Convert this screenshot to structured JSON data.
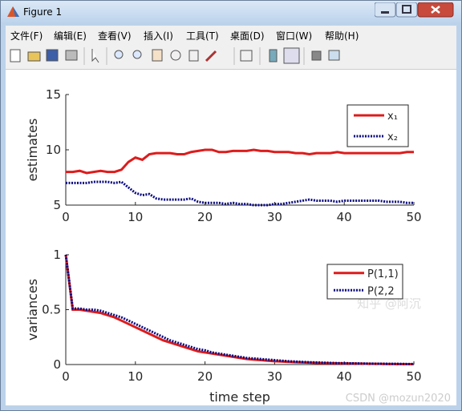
{
  "window": {
    "title": "Figure 1"
  },
  "menu": [
    "文件(F)",
    "编辑(E)",
    "查看(V)",
    "插入(I)",
    "工具(T)",
    "桌面(D)",
    "窗口(W)",
    "帮助(H)"
  ],
  "watermark": {
    "zhihu": "知乎 @阿沉",
    "csdn": "CSDN @mozun2020"
  },
  "chart_data": [
    {
      "type": "line",
      "ylabel": "estimates",
      "legend": "upper right",
      "x": [
        0,
        1,
        2,
        3,
        4,
        5,
        6,
        7,
        8,
        9,
        10,
        11,
        12,
        13,
        14,
        15,
        16,
        17,
        18,
        19,
        20,
        21,
        22,
        23,
        24,
        25,
        26,
        27,
        28,
        29,
        30,
        31,
        32,
        33,
        34,
        35,
        36,
        37,
        38,
        39,
        40,
        41,
        42,
        43,
        44,
        45,
        46,
        47,
        48,
        49,
        50
      ],
      "xlim": [
        0,
        50
      ],
      "xticks": [
        0,
        10,
        20,
        30,
        40,
        50
      ],
      "ylim": [
        5,
        15
      ],
      "yticks": [
        5,
        10,
        15
      ],
      "series": [
        {
          "name": "x₁",
          "color": "#dd1c1c",
          "style": "solid",
          "values": [
            8,
            8,
            8.1,
            7.9,
            8,
            8.1,
            8,
            8,
            8.2,
            8.9,
            9.3,
            9.1,
            9.6,
            9.7,
            9.7,
            9.7,
            9.6,
            9.6,
            9.8,
            9.9,
            10,
            10,
            9.8,
            9.8,
            9.9,
            9.9,
            9.9,
            10,
            9.9,
            9.9,
            9.8,
            9.8,
            9.8,
            9.7,
            9.7,
            9.6,
            9.7,
            9.7,
            9.7,
            9.8,
            9.7,
            9.7,
            9.7,
            9.7,
            9.7,
            9.7,
            9.7,
            9.7,
            9.7,
            9.8,
            9.8
          ]
        },
        {
          "name": "x₂",
          "color": "#0a0a80",
          "style": "dotted",
          "values": [
            7,
            7,
            7,
            7,
            7.1,
            7.1,
            7.1,
            7,
            7.1,
            6.6,
            6.1,
            5.9,
            6,
            5.6,
            5.5,
            5.5,
            5.5,
            5.5,
            5.6,
            5.3,
            5.2,
            5.2,
            5.2,
            5.1,
            5.2,
            5.1,
            5.1,
            5,
            5,
            5,
            5.1,
            5.1,
            5.2,
            5.3,
            5.4,
            5.5,
            5.4,
            5.4,
            5.4,
            5.3,
            5.4,
            5.4,
            5.4,
            5.4,
            5.4,
            5.4,
            5.3,
            5.3,
            5.3,
            5.2,
            5.2
          ]
        }
      ]
    },
    {
      "type": "line",
      "ylabel": "variances",
      "xlabel": "time step",
      "legend": "upper right",
      "x": [
        0,
        1,
        2,
        3,
        4,
        5,
        6,
        7,
        8,
        9,
        10,
        11,
        12,
        13,
        14,
        15,
        16,
        17,
        18,
        19,
        20,
        21,
        22,
        23,
        24,
        25,
        26,
        27,
        28,
        29,
        30,
        31,
        32,
        33,
        34,
        35,
        36,
        37,
        38,
        39,
        40,
        41,
        42,
        43,
        44,
        45,
        46,
        47,
        48,
        49,
        50
      ],
      "xlim": [
        0,
        50
      ],
      "xticks": [
        0,
        10,
        20,
        30,
        40,
        50
      ],
      "ylim": [
        0,
        1
      ],
      "yticks": [
        0,
        0.5,
        1
      ],
      "series": [
        {
          "name": "P(1,1)",
          "color": "#dd1c1c",
          "style": "solid",
          "values": [
            1,
            0.5,
            0.5,
            0.49,
            0.48,
            0.47,
            0.45,
            0.43,
            0.4,
            0.37,
            0.34,
            0.31,
            0.28,
            0.25,
            0.22,
            0.2,
            0.18,
            0.16,
            0.14,
            0.12,
            0.11,
            0.1,
            0.09,
            0.08,
            0.07,
            0.06,
            0.05,
            0.045,
            0.04,
            0.035,
            0.03,
            0.027,
            0.024,
            0.021,
            0.019,
            0.017,
            0.015,
            0.013,
            0.012,
            0.011,
            0.01,
            0.009,
            0.008,
            0.007,
            0.006,
            0.006,
            0.005,
            0.005,
            0.004,
            0.004,
            0.004
          ]
        },
        {
          "name": "P(2,2",
          "color": "#0a0a80",
          "style": "dotted",
          "values": [
            1,
            0.51,
            0.51,
            0.5,
            0.5,
            0.49,
            0.47,
            0.45,
            0.43,
            0.4,
            0.37,
            0.34,
            0.31,
            0.28,
            0.25,
            0.22,
            0.2,
            0.18,
            0.16,
            0.14,
            0.13,
            0.11,
            0.1,
            0.09,
            0.08,
            0.07,
            0.06,
            0.055,
            0.05,
            0.045,
            0.04,
            0.035,
            0.03,
            0.027,
            0.024,
            0.021,
            0.019,
            0.017,
            0.015,
            0.013,
            0.012,
            0.011,
            0.01,
            0.009,
            0.008,
            0.007,
            0.007,
            0.006,
            0.006,
            0.005,
            0.005
          ]
        }
      ]
    }
  ]
}
